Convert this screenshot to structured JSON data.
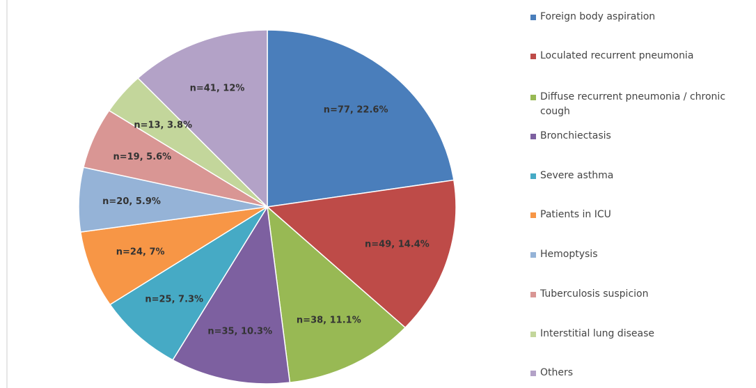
{
  "chart_data": {
    "type": "pie",
    "categories": [
      "Foreign body aspiration",
      "Loculated recurrent pneumonia",
      "Diffuse recurrent pneumonia / chronic cough",
      "Bronchiectasis",
      "Severe asthma",
      "Patients in ICU",
      "Hemoptysis",
      "Tuberculosis suspicion",
      "Interstitial lung disease",
      "Others"
    ],
    "values": [
      77,
      49,
      38,
      35,
      25,
      24,
      20,
      19,
      13,
      41
    ],
    "value_labels": [
      "n=77, 22.6%",
      "n=49, 14.4%",
      "n=38, 11.1%",
      "n=35, 10.3%",
      "n=25, 7.3%",
      "n=24, 7%",
      "n=20, 5.9%",
      "n=19, 5.6%",
      "n=13, 3.8%",
      "n=41, 12%"
    ],
    "colors": [
      "#4a7ebb",
      "#be4b48",
      "#98b954",
      "#7d60a0",
      "#46aac5",
      "#f79646",
      "#95b3d7",
      "#d99694",
      "#c3d69b",
      "#b3a2c7"
    ],
    "legend": "right"
  }
}
